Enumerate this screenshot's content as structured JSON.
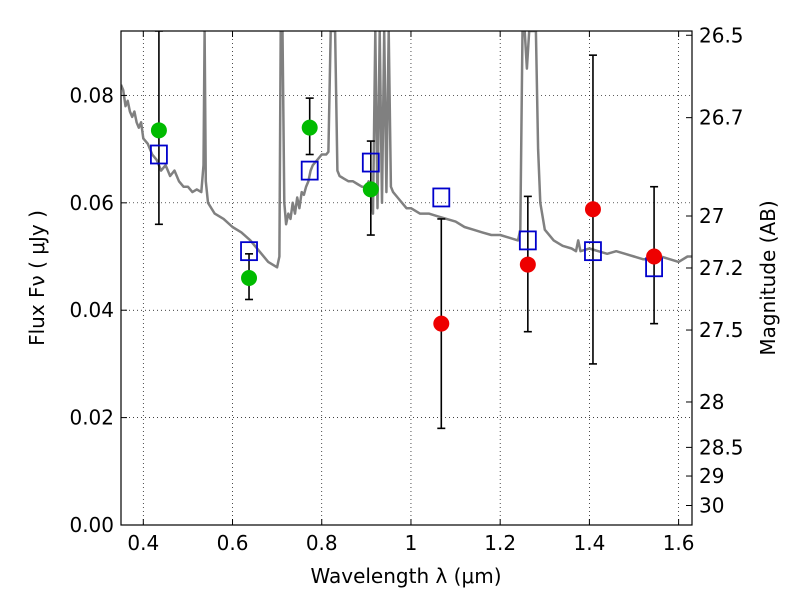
{
  "chart_data": {
    "type": "scatter",
    "xlabel": "Wavelength  λ (μm)",
    "ylabel": "Flux  Fν  ( μJy )",
    "y2label": "Magnitude (AB)",
    "xlim": [
      0.35,
      1.63
    ],
    "ylim": [
      0.0,
      0.092
    ],
    "grid": true,
    "x_ticks": [
      {
        "value": 0.4,
        "label": "0.4"
      },
      {
        "value": 0.6,
        "label": "0.6"
      },
      {
        "value": 0.8,
        "label": "0.8"
      },
      {
        "value": 1.0,
        "label": "1"
      },
      {
        "value": 1.2,
        "label": "1.2"
      },
      {
        "value": 1.4,
        "label": "1.4"
      },
      {
        "value": 1.6,
        "label": "1.6"
      }
    ],
    "y_ticks": [
      {
        "value": 0.0,
        "label": "0.00"
      },
      {
        "value": 0.02,
        "label": "0.02"
      },
      {
        "value": 0.04,
        "label": "0.04"
      },
      {
        "value": 0.06,
        "label": "0.06"
      },
      {
        "value": 0.08,
        "label": "0.08"
      }
    ],
    "mag_ticks": [
      {
        "value": 26.5,
        "label": "26.5"
      },
      {
        "value": 26.7,
        "label": "26.7"
      },
      {
        "value": 27,
        "label": "27"
      },
      {
        "value": 27.2,
        "label": "27.2"
      },
      {
        "value": 27.5,
        "label": "27.5"
      },
      {
        "value": 28,
        "label": "28"
      },
      {
        "value": 28.5,
        "label": "28.5"
      },
      {
        "value": 29,
        "label": "29"
      },
      {
        "value": 30,
        "label": "30"
      }
    ],
    "series": [
      {
        "role": "model-spectrum",
        "kind": "line",
        "color": "#808080",
        "points": [
          [
            0.35,
            0.082
          ],
          [
            0.355,
            0.081
          ],
          [
            0.36,
            0.078
          ],
          [
            0.365,
            0.079
          ],
          [
            0.37,
            0.077
          ],
          [
            0.375,
            0.076
          ],
          [
            0.38,
            0.077
          ],
          [
            0.385,
            0.075
          ],
          [
            0.39,
            0.074
          ],
          [
            0.395,
            0.075
          ],
          [
            0.4,
            0.072
          ],
          [
            0.41,
            0.071
          ],
          [
            0.42,
            0.069
          ],
          [
            0.43,
            0.068
          ],
          [
            0.44,
            0.066
          ],
          [
            0.45,
            0.067
          ],
          [
            0.46,
            0.065
          ],
          [
            0.47,
            0.066
          ],
          [
            0.48,
            0.064
          ],
          [
            0.49,
            0.063
          ],
          [
            0.5,
            0.063
          ],
          [
            0.51,
            0.062
          ],
          [
            0.52,
            0.0625
          ],
          [
            0.53,
            0.062
          ],
          [
            0.535,
            0.067
          ],
          [
            0.5375,
            0.092
          ],
          [
            0.54,
            0.064
          ],
          [
            0.545,
            0.06
          ],
          [
            0.56,
            0.058
          ],
          [
            0.58,
            0.057
          ],
          [
            0.6,
            0.0555
          ],
          [
            0.62,
            0.0545
          ],
          [
            0.64,
            0.053
          ],
          [
            0.66,
            0.051
          ],
          [
            0.68,
            0.049
          ],
          [
            0.7,
            0.048
          ],
          [
            0.705,
            0.05
          ],
          [
            0.708,
            0.092
          ],
          [
            0.712,
            0.092
          ],
          [
            0.716,
            0.06
          ],
          [
            0.72,
            0.056
          ],
          [
            0.725,
            0.058
          ],
          [
            0.73,
            0.057
          ],
          [
            0.735,
            0.06
          ],
          [
            0.74,
            0.058
          ],
          [
            0.745,
            0.061
          ],
          [
            0.75,
            0.059
          ],
          [
            0.755,
            0.062
          ],
          [
            0.76,
            0.0615
          ],
          [
            0.765,
            0.063
          ],
          [
            0.77,
            0.064
          ],
          [
            0.775,
            0.066
          ],
          [
            0.78,
            0.067
          ],
          [
            0.79,
            0.068
          ],
          [
            0.8,
            0.069
          ],
          [
            0.81,
            0.069
          ],
          [
            0.815,
            0.0695
          ],
          [
            0.82,
            0.092
          ],
          [
            0.825,
            0.092
          ],
          [
            0.83,
            0.092
          ],
          [
            0.835,
            0.066
          ],
          [
            0.84,
            0.065
          ],
          [
            0.85,
            0.0645
          ],
          [
            0.86,
            0.064
          ],
          [
            0.87,
            0.064
          ],
          [
            0.88,
            0.0635
          ],
          [
            0.89,
            0.063
          ],
          [
            0.9,
            0.063
          ],
          [
            0.905,
            0.064
          ],
          [
            0.91,
            0.063
          ],
          [
            0.915,
            0.058
          ],
          [
            0.92,
            0.092
          ],
          [
            0.925,
            0.059
          ],
          [
            0.93,
            0.092
          ],
          [
            0.935,
            0.06
          ],
          [
            0.94,
            0.092
          ],
          [
            0.945,
            0.062
          ],
          [
            0.95,
            0.092
          ],
          [
            0.955,
            0.063
          ],
          [
            0.96,
            0.062
          ],
          [
            0.97,
            0.061
          ],
          [
            0.98,
            0.06
          ],
          [
            0.99,
            0.059
          ],
          [
            1.0,
            0.059
          ],
          [
            1.02,
            0.058
          ],
          [
            1.04,
            0.058
          ],
          [
            1.06,
            0.0575
          ],
          [
            1.08,
            0.057
          ],
          [
            1.1,
            0.0565
          ],
          [
            1.12,
            0.0555
          ],
          [
            1.14,
            0.055
          ],
          [
            1.16,
            0.0545
          ],
          [
            1.18,
            0.054
          ],
          [
            1.2,
            0.054
          ],
          [
            1.22,
            0.0535
          ],
          [
            1.24,
            0.053
          ],
          [
            1.245,
            0.055
          ],
          [
            1.25,
            0.092
          ],
          [
            1.255,
            0.092
          ],
          [
            1.26,
            0.085
          ],
          [
            1.265,
            0.092
          ],
          [
            1.27,
            0.092
          ],
          [
            1.275,
            0.092
          ],
          [
            1.28,
            0.092
          ],
          [
            1.285,
            0.07
          ],
          [
            1.29,
            0.06
          ],
          [
            1.3,
            0.055
          ],
          [
            1.32,
            0.053
          ],
          [
            1.34,
            0.052
          ],
          [
            1.36,
            0.0515
          ],
          [
            1.37,
            0.051
          ],
          [
            1.375,
            0.053
          ],
          [
            1.38,
            0.051
          ],
          [
            1.4,
            0.0515
          ],
          [
            1.42,
            0.051
          ],
          [
            1.44,
            0.0505
          ],
          [
            1.46,
            0.051
          ],
          [
            1.48,
            0.0505
          ],
          [
            1.5,
            0.05
          ],
          [
            1.52,
            0.0495
          ],
          [
            1.54,
            0.0495
          ],
          [
            1.56,
            0.05
          ],
          [
            1.58,
            0.0495
          ],
          [
            1.6,
            0.049
          ],
          [
            1.62,
            0.05
          ],
          [
            1.63,
            0.05
          ]
        ]
      },
      {
        "role": "model-synthetic-photometry",
        "kind": "open-square",
        "color": "#0000cc",
        "points": [
          [
            0.435,
            0.069
          ],
          [
            0.637,
            0.051
          ],
          [
            0.773,
            0.066
          ],
          [
            0.91,
            0.0675
          ],
          [
            1.068,
            0.061
          ],
          [
            1.262,
            0.053
          ],
          [
            1.408,
            0.051
          ],
          [
            1.545,
            0.048
          ]
        ]
      },
      {
        "role": "detections-optical",
        "kind": "filled-circle",
        "color": "#00bb00",
        "points": [
          {
            "x": 0.435,
            "y": 0.0735,
            "err_lo": 0.056,
            "err_hi": 0.092
          },
          {
            "x": 0.637,
            "y": 0.046,
            "err_lo": 0.042,
            "err_hi": 0.0505
          },
          {
            "x": 0.773,
            "y": 0.074,
            "err_lo": 0.069,
            "err_hi": 0.0795
          },
          {
            "x": 0.91,
            "y": 0.0625,
            "err_lo": 0.054,
            "err_hi": 0.0715
          }
        ]
      },
      {
        "role": "detections-nir",
        "kind": "filled-circle",
        "color": "#ee0000",
        "points": [
          {
            "x": 1.068,
            "y": 0.0375,
            "err_lo": 0.018,
            "err_hi": 0.057
          },
          {
            "x": 1.262,
            "y": 0.0485,
            "err_lo": 0.036,
            "err_hi": 0.0612
          },
          {
            "x": 1.408,
            "y": 0.0588,
            "err_lo": 0.03,
            "err_hi": 0.0875
          },
          {
            "x": 1.545,
            "y": 0.05,
            "err_lo": 0.0375,
            "err_hi": 0.063
          }
        ]
      }
    ]
  }
}
